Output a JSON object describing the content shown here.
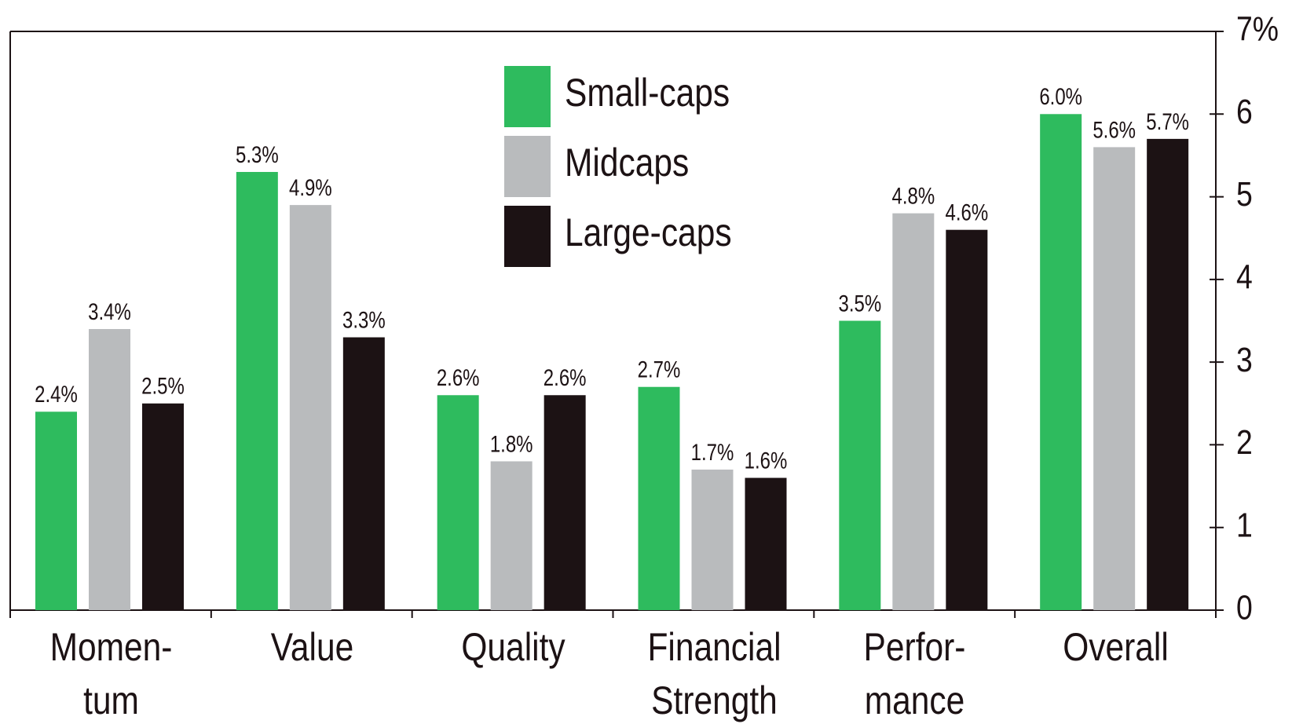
{
  "chart_data": {
    "type": "bar",
    "categories": [
      "Momen-\ntum",
      "Value",
      "Quality",
      "Financial\nStrength",
      "Perfor-\nmance",
      "Overall"
    ],
    "series": [
      {
        "name": "Small-caps",
        "color": "#2ebb5e",
        "values": [
          2.4,
          5.3,
          2.6,
          2.7,
          3.5,
          6.0
        ],
        "value_labels": [
          "2.4%",
          "5.3%",
          "2.6%",
          "2.7%",
          "3.5%",
          "6.0%"
        ]
      },
      {
        "name": "Midcaps",
        "color": "#b9bbbd",
        "values": [
          3.4,
          4.9,
          1.8,
          1.7,
          4.8,
          5.6
        ],
        "value_labels": [
          "3.4%",
          "4.9%",
          "1.8%",
          "1.7%",
          "4.8%",
          "5.6%"
        ]
      },
      {
        "name": "Large-caps",
        "color": "#1c1214",
        "values": [
          2.5,
          3.3,
          2.6,
          1.6,
          4.6,
          5.7
        ],
        "value_labels": [
          "2.5%",
          "3.3%",
          "2.6%",
          "1.6%",
          "4.6%",
          "5.7%"
        ]
      }
    ],
    "ylim": [
      0,
      7
    ],
    "yticks": [
      0,
      1,
      2,
      3,
      4,
      5,
      6,
      {
        "value": 7,
        "label": "7%"
      }
    ],
    "y_axis_side": "right",
    "legend": "top-center"
  }
}
